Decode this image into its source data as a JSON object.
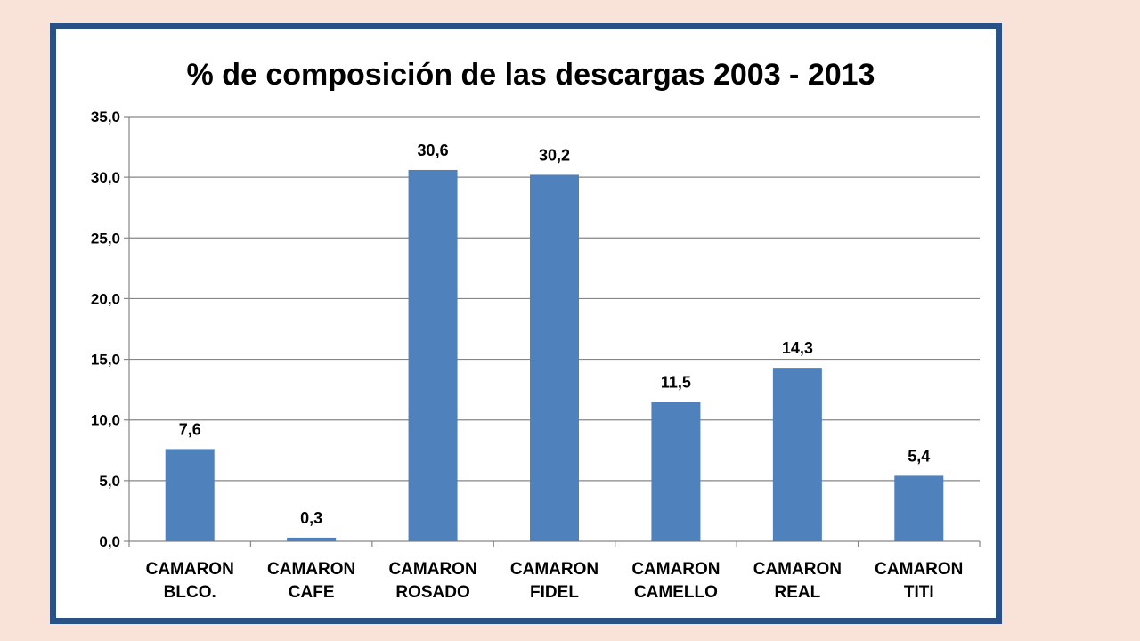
{
  "colors": {
    "background": "#f9e3d8",
    "frame_border": "#2a5186",
    "bar": "#4f81bd",
    "gridline": "#868686"
  },
  "chart_data": {
    "type": "bar",
    "title": "% de composición de las descargas 2003 - 2013",
    "xlabel": "",
    "ylabel": "",
    "categories": [
      [
        "CAMARON",
        "BLCO."
      ],
      [
        "CAMARON",
        "CAFE"
      ],
      [
        "CAMARON",
        "ROSADO"
      ],
      [
        "CAMARON",
        "FIDEL"
      ],
      [
        "CAMARON",
        "CAMELLO"
      ],
      [
        "CAMARON",
        "REAL"
      ],
      [
        "CAMARON",
        "TITI"
      ]
    ],
    "values": [
      7.6,
      0.3,
      30.6,
      30.2,
      11.5,
      14.3,
      5.4
    ],
    "data_labels": [
      "7,6",
      "0,3",
      "30,6",
      "30,2",
      "11,5",
      "14,3",
      "5,4"
    ],
    "ylim": [
      0,
      35
    ],
    "yticks": [
      0,
      5,
      10,
      15,
      20,
      25,
      30,
      35
    ],
    "ytick_labels": [
      "0,0",
      "5,0",
      "10,0",
      "15,0",
      "20,0",
      "25,0",
      "30,0",
      "35,0"
    ],
    "grid": true,
    "legend": "none"
  }
}
